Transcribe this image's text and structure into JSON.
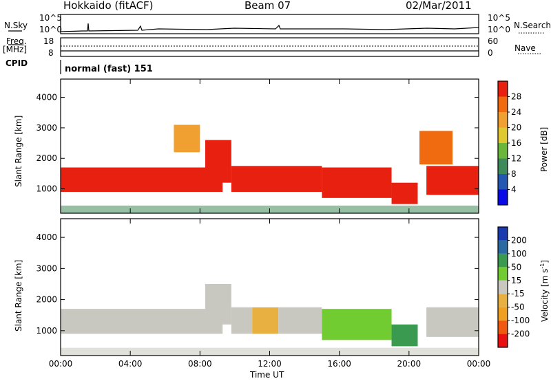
{
  "header": {
    "station": "Hokkaido (fitACF)",
    "beam": "Beam 07",
    "date": "02/Mar/2011"
  },
  "nsky_panel": {
    "left_label": "N.Sky",
    "right_label": "N.Search",
    "tick_top": "10^5",
    "tick_bottom": "10^0"
  },
  "freq_panel": {
    "left_label": "Freq.",
    "left_unit": "[MHz]",
    "left_top": "18",
    "left_bottom": "8",
    "right_label": "Nave",
    "right_top": "60",
    "right_bottom": "0"
  },
  "cpid_panel": {
    "label": "CPID",
    "mode": "normal (fast) 151"
  },
  "colors": {
    "power": [
      "#0a0ae6",
      "#2457b0",
      "#3f8a5a",
      "#6ab73c",
      "#e0c830",
      "#f0a030",
      "#f06a10",
      "#e82010"
    ],
    "velocity": [
      "#e81010",
      "#f05a10",
      "#f0a020",
      "#e8b040",
      "#c8c8c0",
      "#70cc30",
      "#3a9a50",
      "#2a6aa0",
      "#1a3ab0"
    ]
  },
  "chart_data": [
    {
      "type": "heatmap",
      "quantity": "Power",
      "ylabel": "Slant Range [km]",
      "y_ticks": [
        1000,
        2000,
        3000,
        4000
      ],
      "ylim": [
        200,
        4600
      ],
      "xlim": [
        0,
        24
      ],
      "colorbar": {
        "label": "Power [dB]",
        "ticks": [
          4,
          8,
          12,
          16,
          20,
          24,
          28
        ],
        "range": [
          0,
          32
        ]
      },
      "bands": [
        {
          "t0": 0,
          "t1": 9.3,
          "r_lo": 900,
          "r_hi": 1700,
          "level": 30
        },
        {
          "t0": 8.3,
          "t1": 9.8,
          "r_lo": 1200,
          "r_hi": 2600,
          "level": 28
        },
        {
          "t0": 9.8,
          "t1": 15,
          "r_lo": 900,
          "r_hi": 1750,
          "level": 30
        },
        {
          "t0": 15,
          "t1": 19,
          "r_lo": 700,
          "r_hi": 1700,
          "level": 30
        },
        {
          "t0": 19,
          "t1": 20.5,
          "r_lo": 500,
          "r_hi": 1200,
          "level": 30
        },
        {
          "t0": 21,
          "t1": 24,
          "r_lo": 800,
          "r_hi": 1750,
          "level": 30
        },
        {
          "t0": 20.6,
          "t1": 22.5,
          "r_lo": 1800,
          "r_hi": 2900,
          "level": 24
        },
        {
          "t0": 6.5,
          "t1": 8,
          "r_lo": 2200,
          "r_hi": 3100,
          "level": 22
        }
      ]
    },
    {
      "type": "heatmap",
      "quantity": "Velocity",
      "xlabel": "Time UT",
      "ylabel": "Slant Range [km]",
      "x_ticks": [
        "00:00",
        "04:00",
        "08:00",
        "12:00",
        "16:00",
        "20:00",
        "00:00"
      ],
      "y_ticks": [
        1000,
        2000,
        3000,
        4000
      ],
      "ylim": [
        200,
        4600
      ],
      "xlim": [
        0,
        24
      ],
      "colorbar": {
        "label": "Velocity [m s-1]",
        "unit_sup": "-1",
        "ticks": [
          -200,
          -100,
          -50,
          -15,
          15,
          50,
          100,
          200
        ]
      },
      "bands": [
        {
          "t0": 0,
          "t1": 9.3,
          "r_lo": 900,
          "r_hi": 1700,
          "level": 0
        },
        {
          "t0": 8.3,
          "t1": 9.8,
          "r_lo": 1200,
          "r_hi": 2500,
          "level": 0
        },
        {
          "t0": 9.8,
          "t1": 11,
          "r_lo": 900,
          "r_hi": 1750,
          "level": 0
        },
        {
          "t0": 11,
          "t1": 12.5,
          "r_lo": 900,
          "r_hi": 1750,
          "level": -30
        },
        {
          "t0": 12.5,
          "t1": 15,
          "r_lo": 900,
          "r_hi": 1750,
          "level": 0
        },
        {
          "t0": 15,
          "t1": 19,
          "r_lo": 700,
          "r_hi": 1700,
          "level": 30
        },
        {
          "t0": 19,
          "t1": 20.5,
          "r_lo": 500,
          "r_hi": 1200,
          "level": 80
        },
        {
          "t0": 21,
          "t1": 24,
          "r_lo": 800,
          "r_hi": 1750,
          "level": 0
        }
      ]
    }
  ]
}
